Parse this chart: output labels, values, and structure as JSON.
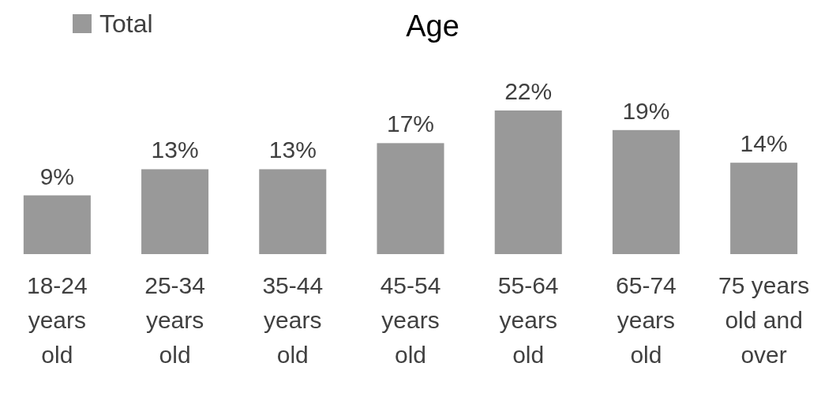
{
  "chart_data": {
    "type": "bar",
    "title": "Age",
    "categories": [
      "18-24 years old",
      "25-34 years old",
      "35-44 years old",
      "45-54 years old",
      "55-64 years old",
      "65-74 years old",
      "75 years old and over"
    ],
    "series": [
      {
        "name": "Total",
        "color": "#999999",
        "values": [
          9,
          13,
          13,
          17,
          22,
          19,
          14
        ],
        "value_labels": [
          "9%",
          "13%",
          "13%",
          "17%",
          "22%",
          "19%",
          "14%"
        ]
      }
    ],
    "legend": "top left"
  }
}
